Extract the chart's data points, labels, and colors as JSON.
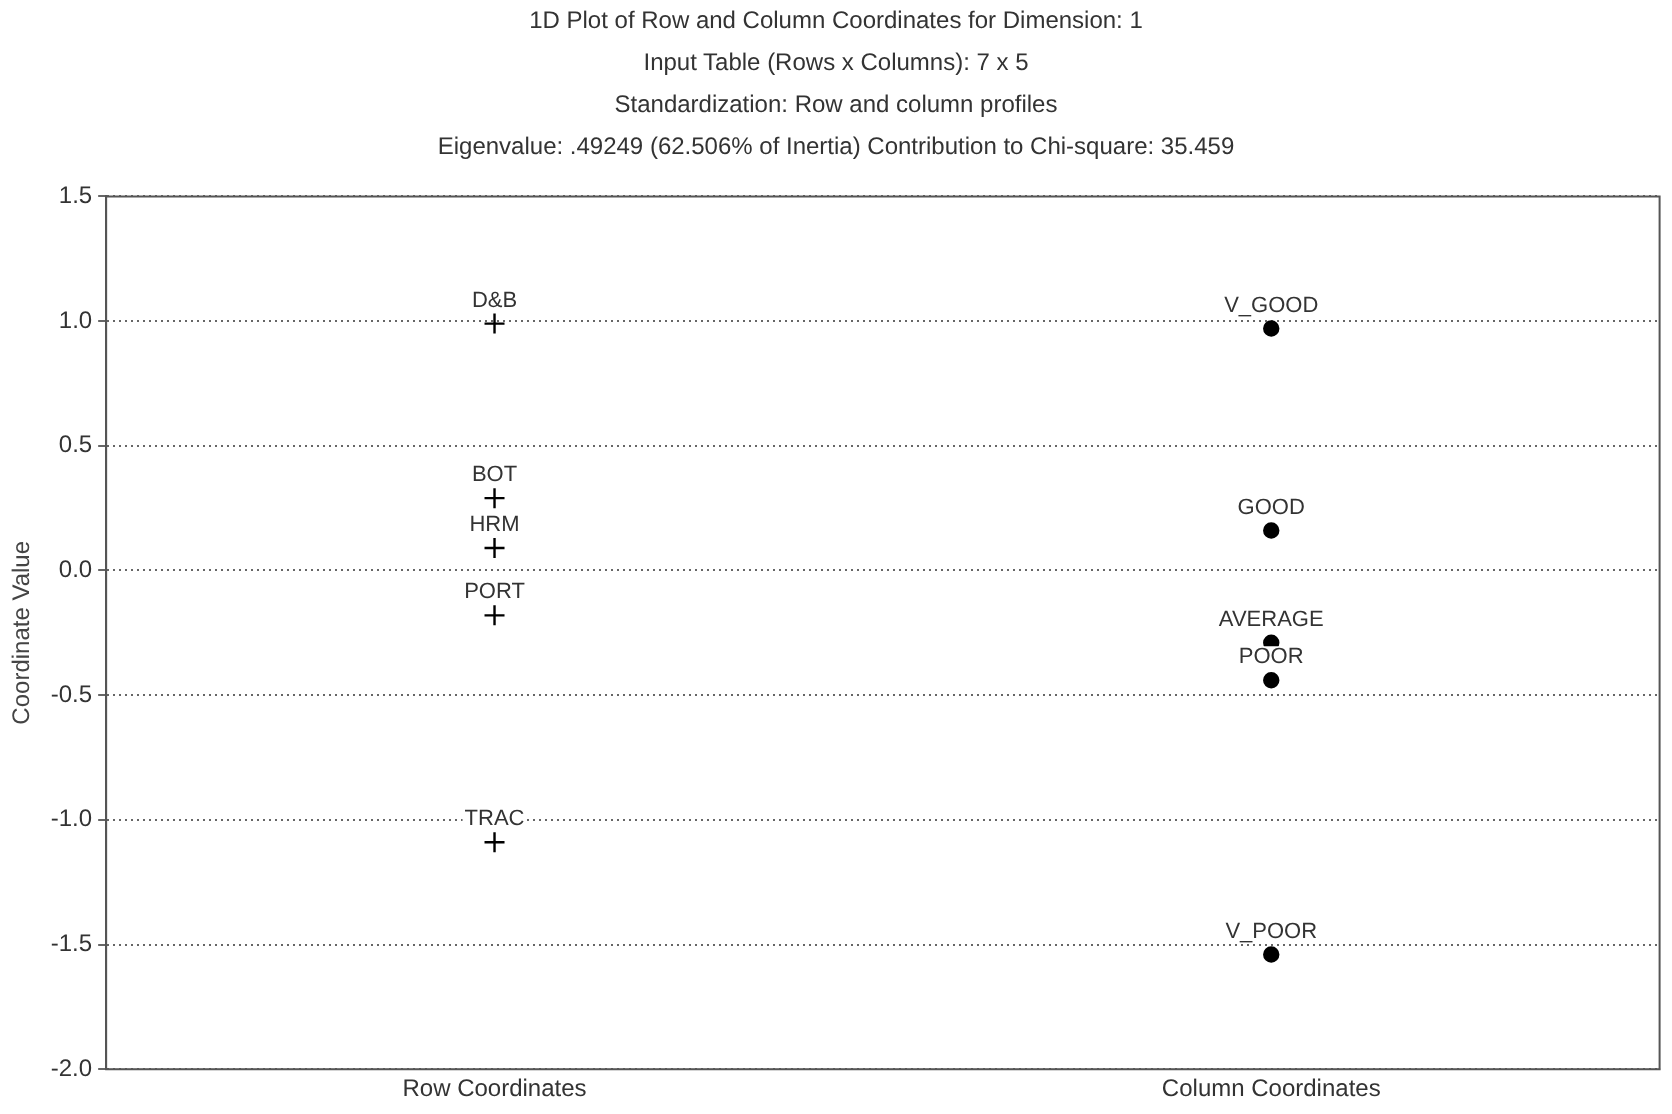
{
  "chart_data": {
    "type": "scatter",
    "title": "1D Plot of Row and Column Coordinates for Dimension: 1",
    "subtitle": "Input Table (Rows x Columns): 7 x 5\nStandardization: Row and column profiles\nEigenvalue: .49249 (62.506% of Inertia) Contribution to Chi-square: 35.459",
    "ylabel": "Coordinate Value",
    "categories": [
      "Row Coordinates",
      "Column Coordinates"
    ],
    "series": [
      {
        "color": "#000000",
        "marker": "cross",
        "x": [
          "Row Coordinates",
          "Row Coordinates",
          "Row Coordinates",
          "Row Coordinates",
          "Row Coordinates"
        ],
        "values": [
          0.99,
          0.29,
          0.09,
          -0.18,
          -1.09
        ]
      },
      {
        "color": "#000000",
        "marker": "circle",
        "x": [
          "Column Coordinates",
          "Column Coordinates",
          "Column Coordinates",
          "Column Coordinates",
          "Column Coordinates"
        ],
        "values": [
          0.97,
          0.16,
          -0.29,
          -0.44,
          -1.54
        ]
      }
    ],
    "annotations": [
      {
        "text": "D&B",
        "x": "Row Coordinates",
        "y": 0.99
      },
      {
        "text": "BOT",
        "x": "Row Coordinates",
        "y": 0.29
      },
      {
        "text": "HRM",
        "x": "Row Coordinates",
        "y": 0.09
      },
      {
        "text": "PORT",
        "x": "Row Coordinates",
        "y": -0.18
      },
      {
        "text": "TRAC",
        "x": "Row Coordinates",
        "y": -1.09
      },
      {
        "text": "V_GOOD",
        "x": "Column Coordinates",
        "y": 0.97
      },
      {
        "text": "GOOD",
        "x": "Column Coordinates",
        "y": 0.16
      },
      {
        "text": "AVERAGE",
        "x": "Column Coordinates",
        "y": -0.29
      },
      {
        "text": "POOR",
        "x": "Column Coordinates",
        "y": -0.44
      },
      {
        "text": "V_POOR",
        "x": "Column Coordinates",
        "y": -1.54
      }
    ],
    "ylim": [
      -2.0,
      1.5
    ],
    "yticks": [
      {
        "value": -2,
        "label": "-2.0"
      },
      {
        "value": -1.5,
        "label": "-1.5"
      },
      {
        "value": -1,
        "label": "-1.0"
      },
      {
        "value": -0.5,
        "label": "-0.5"
      },
      {
        "value": 0,
        "label": "0.0"
      },
      {
        "value": 0.5,
        "label": "0.5"
      },
      {
        "value": 1,
        "label": "1.0"
      },
      {
        "value": 1.5,
        "label": "1.5"
      }
    ],
    "grid": "y",
    "legend": false
  }
}
